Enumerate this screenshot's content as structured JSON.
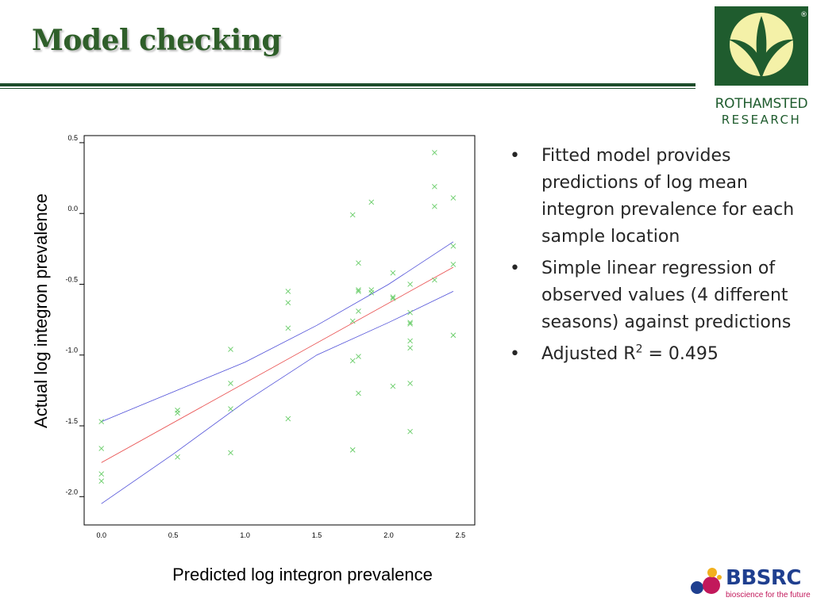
{
  "slide": {
    "title": "Model checking",
    "bullets": [
      "Fitted model provides predictions of log mean integron prevalence for each sample location",
      "Simple linear regression of observed values (4 different seasons) against predictions"
    ],
    "r2_prefix": "Adjusted R",
    "r2_sup": "2",
    "r2_suffix": " = 0.495",
    "bullet_glyph": "•"
  },
  "logos": {
    "rothamsted_line1": "ROTHAMSTED",
    "rothamsted_line2": "RESEARCH",
    "registered_mark": "®",
    "bbsrc_word": "BBSRC",
    "bbsrc_tagline": "bioscience for the future"
  },
  "colors": {
    "title": "#2f5f2a",
    "rule": "#1e4d2b",
    "rothamsted_green": "#1f5c2e",
    "rothamsted_leaf": "#f4f1a8",
    "points": "#66cc66",
    "fit_line": "#e84a4a",
    "ci_lines": "#4f4fd8",
    "bbsrc_blue": "#1f3f8f",
    "bbsrc_pink": "#c2185b"
  },
  "chart_data": {
    "type": "scatter",
    "xlabel": "Predicted log integron prevalence",
    "ylabel": "Actual  log integron prevalence",
    "xlim": [
      -0.12,
      2.6
    ],
    "ylim": [
      -2.2,
      0.55
    ],
    "xticks": [
      0.0,
      0.5,
      1.0,
      1.5,
      2.0,
      2.5
    ],
    "xtick_labels": [
      "0.0",
      "0.5",
      "1.0",
      "1.5",
      "2.0",
      "2.5"
    ],
    "yticks": [
      0.5,
      0.0,
      -0.5,
      -1.0,
      -1.5,
      -2.0
    ],
    "ytick_labels": [
      "0.5",
      "0.0",
      "-0.5",
      "-1.0",
      "-1.5",
      "-2.0"
    ],
    "grid": false,
    "marker": "x",
    "points": [
      [
        0.0,
        -1.47
      ],
      [
        0.0,
        -1.66
      ],
      [
        0.0,
        -1.84
      ],
      [
        0.0,
        -1.89
      ],
      [
        0.53,
        -1.39
      ],
      [
        0.53,
        -1.41
      ],
      [
        0.53,
        -1.72
      ],
      [
        0.9,
        -0.96
      ],
      [
        0.9,
        -1.2
      ],
      [
        0.9,
        -1.38
      ],
      [
        0.9,
        -1.69
      ],
      [
        1.3,
        -0.55
      ],
      [
        1.3,
        -0.63
      ],
      [
        1.3,
        -0.81
      ],
      [
        1.3,
        -1.45
      ],
      [
        1.75,
        -0.01
      ],
      [
        1.75,
        -0.76
      ],
      [
        1.75,
        -1.04
      ],
      [
        1.75,
        -1.67
      ],
      [
        1.79,
        -0.35
      ],
      [
        1.79,
        -0.54
      ],
      [
        1.79,
        -0.55
      ],
      [
        1.79,
        -0.69
      ],
      [
        1.79,
        -1.01
      ],
      [
        1.79,
        -1.27
      ],
      [
        1.88,
        0.08
      ],
      [
        1.88,
        -0.54
      ],
      [
        1.88,
        -0.56
      ],
      [
        2.03,
        -0.42
      ],
      [
        2.03,
        -0.59
      ],
      [
        2.03,
        -0.6
      ],
      [
        2.03,
        -1.22
      ],
      [
        2.15,
        -0.5
      ],
      [
        2.15,
        -0.7
      ],
      [
        2.15,
        -0.77
      ],
      [
        2.15,
        -0.78
      ],
      [
        2.15,
        -0.9
      ],
      [
        2.15,
        -0.95
      ],
      [
        2.15,
        -1.2
      ],
      [
        2.15,
        -1.54
      ],
      [
        2.32,
        0.43
      ],
      [
        2.32,
        0.19
      ],
      [
        2.32,
        0.05
      ],
      [
        2.32,
        -0.47
      ],
      [
        2.45,
        0.11
      ],
      [
        2.45,
        -0.23
      ],
      [
        2.45,
        -0.36
      ],
      [
        2.45,
        -0.86
      ]
    ],
    "fit_line": {
      "x": [
        0.0,
        2.45
      ],
      "y": [
        -1.76,
        -0.38
      ]
    },
    "ci_upper": {
      "x": [
        0.0,
        0.5,
        1.0,
        1.5,
        2.0,
        2.45
      ],
      "y": [
        -1.47,
        -1.26,
        -1.05,
        -0.79,
        -0.5,
        -0.2
      ]
    },
    "ci_lower": {
      "x": [
        0.0,
        0.5,
        1.0,
        1.5,
        2.0,
        2.45
      ],
      "y": [
        -2.05,
        -1.7,
        -1.33,
        -1.0,
        -0.77,
        -0.55
      ]
    }
  }
}
